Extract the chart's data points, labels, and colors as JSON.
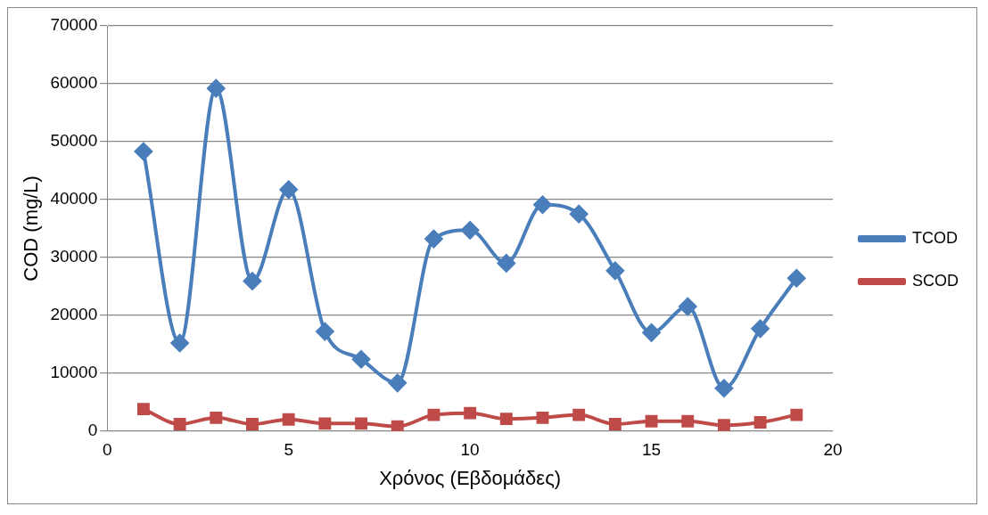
{
  "chart_data": {
    "type": "line",
    "xlabel": "Χρόνος (Εβδομάδες)",
    "ylabel": "COD (mg/L)",
    "x": [
      1,
      2,
      3,
      4,
      5,
      6,
      7,
      8,
      9,
      10,
      11,
      12,
      13,
      14,
      15,
      16,
      17,
      18,
      19
    ],
    "series": [
      {
        "name": "TCOD",
        "color": "#4a7ebb",
        "marker": "diamond",
        "values": [
          48300,
          15200,
          59200,
          25900,
          41700,
          17200,
          12400,
          8300,
          33200,
          34700,
          29000,
          39100,
          37500,
          27700,
          17000,
          21500,
          7400,
          17700,
          26400
        ]
      },
      {
        "name": "SCOD",
        "color": "#be4b48",
        "marker": "square",
        "values": [
          3800,
          1200,
          2300,
          1200,
          2000,
          1300,
          1300,
          800,
          2800,
          3100,
          2100,
          2300,
          2800,
          1200,
          1700,
          1700,
          1000,
          1500,
          2800
        ]
      }
    ],
    "xlim": [
      0,
      20
    ],
    "xticks": [
      0,
      5,
      10,
      15,
      20
    ],
    "ylim": [
      0,
      70000
    ],
    "yticks": [
      0,
      10000,
      20000,
      30000,
      40000,
      50000,
      60000,
      70000
    ],
    "grid": "y",
    "legend": "right",
    "line_style": "solid"
  }
}
